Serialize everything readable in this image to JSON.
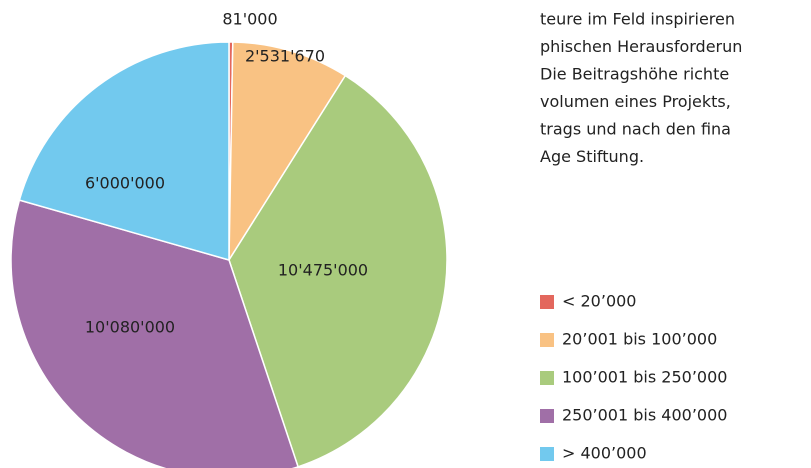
{
  "chart_data": {
    "type": "pie",
    "categories": [
      "< 20’000",
      "20’001 bis 100’000",
      "100’001 bis 250’000",
      "250’001 bis 400’000",
      "> 400’000"
    ],
    "values": [
      81000,
      2531670,
      10475000,
      10080000,
      6000000
    ],
    "value_labels": [
      "81'000",
      "2'531'670",
      "10'475'000",
      "10'080'000",
      "6'000'000"
    ],
    "colors": [
      "#e3675d",
      "#f9c283",
      "#a9cb7d",
      "#a06fa7",
      "#72c9ee"
    ],
    "legend": "right"
  },
  "text": {
    "lines": [
      "teure im Feld inspirieren",
      "phischen Herausforderun",
      "Die Beitragshöhe richte",
      "volumen eines Projekts,",
      "trags und nach den fina",
      "Age Stiftung."
    ]
  }
}
